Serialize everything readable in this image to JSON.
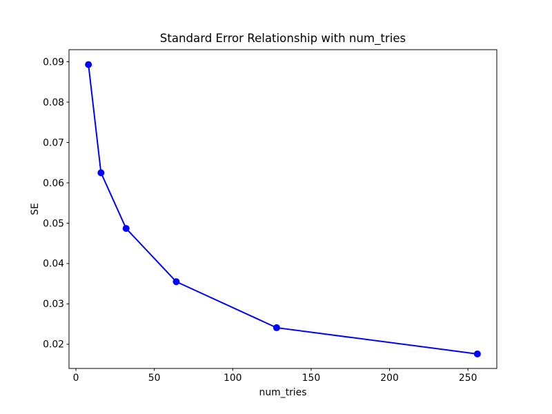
{
  "figure": {
    "background": "#ffffff",
    "text_color": "#000000",
    "spine_color": "#000000"
  },
  "chart_data": {
    "type": "line",
    "title": "Standard Error Relationship with num_tries",
    "xlabel": "num_tries",
    "ylabel": "SE",
    "x": [
      8,
      16,
      32,
      64,
      128,
      256
    ],
    "y": [
      0.0893,
      0.0625,
      0.0487,
      0.0355,
      0.0241,
      0.0176
    ],
    "line_color": "#0000ff",
    "marker": "o",
    "marker_color": "#0000ff",
    "xlim": [
      -4.4,
      268.4
    ],
    "ylim": [
      0.014,
      0.093
    ],
    "xticks": {
      "values": [
        0,
        50,
        100,
        150,
        200,
        250
      ],
      "labels": [
        "0",
        "50",
        "100",
        "150",
        "200",
        "250"
      ]
    },
    "yticks": {
      "values": [
        0.02,
        0.03,
        0.04,
        0.05,
        0.06,
        0.07,
        0.08,
        0.09
      ],
      "labels": [
        "0.02",
        "0.03",
        "0.04",
        "0.05",
        "0.06",
        "0.07",
        "0.08",
        "0.09"
      ]
    },
    "grid": false,
    "legend_position": "none"
  }
}
